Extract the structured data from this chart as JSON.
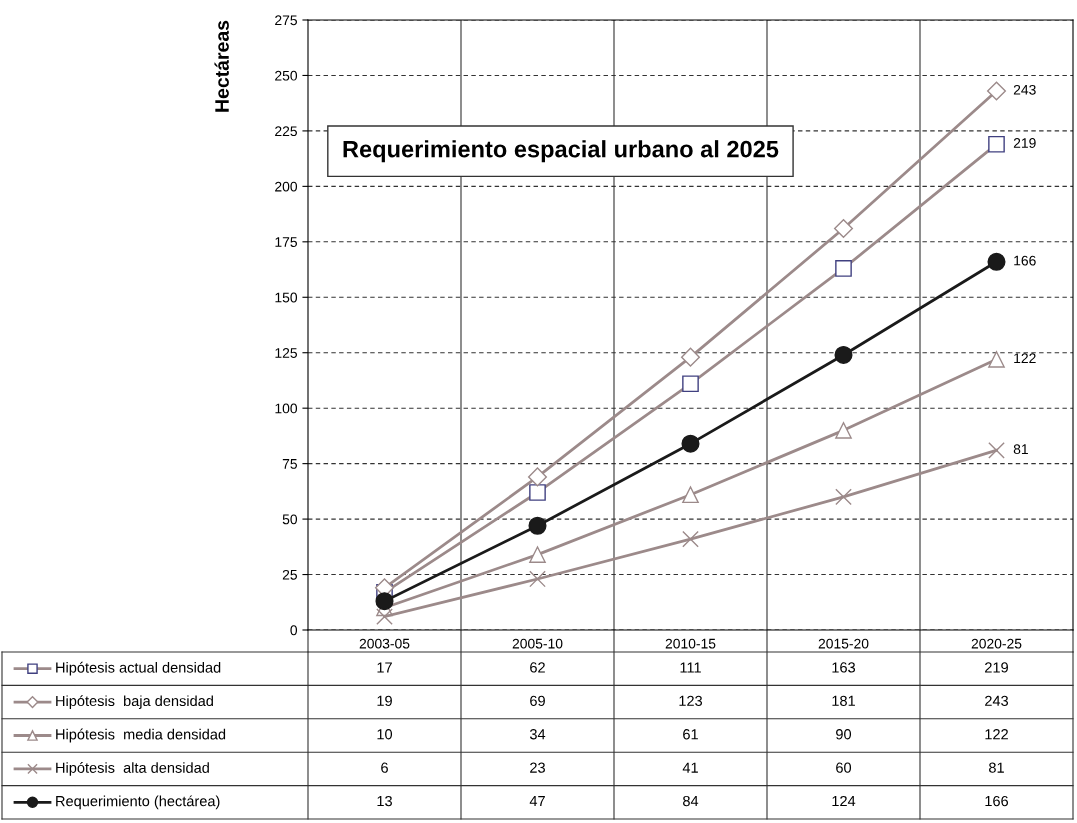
{
  "chart_data": {
    "type": "line",
    "title": "Requerimiento espacial urbano al 2025",
    "ylabel": "Hectáreas",
    "categories": [
      "2003-05",
      "2005-10",
      "2010-15",
      "2015-20",
      "2020-25"
    ],
    "ylim": [
      0,
      275
    ],
    "yticks": [
      0,
      25,
      50,
      75,
      100,
      125,
      150,
      175,
      200,
      225,
      250,
      275
    ],
    "grid": "y",
    "legend": "bottom",
    "data_labels": true,
    "annotations": [
      {
        "text": "243",
        "x": "2020-25",
        "y": 243
      },
      {
        "text": "219",
        "x": "2020-25",
        "y": 219
      },
      {
        "text": "166",
        "x": "2020-25",
        "y": 166
      },
      {
        "text": "122",
        "x": "2020-25",
        "y": 122
      },
      {
        "text": "81",
        "x": "2020-25",
        "y": 81
      }
    ],
    "series": [
      {
        "name": "Hipótesis actual densidad",
        "color": "#9c8a8a",
        "marker": "square",
        "values": [
          17,
          62,
          111,
          163,
          219
        ]
      },
      {
        "name": "Hipótesis  baja densidad",
        "color": "#9c8a8a",
        "marker": "diamond",
        "values": [
          19,
          69,
          123,
          181,
          243
        ]
      },
      {
        "name": "Hipótesis  media densidad",
        "color": "#9c8a8a",
        "marker": "triangle",
        "values": [
          10,
          34,
          61,
          90,
          122
        ]
      },
      {
        "name": "Hipótesis  alta densidad",
        "color": "#9c8a8a",
        "marker": "cross",
        "values": [
          6,
          23,
          41,
          60,
          81
        ]
      },
      {
        "name": "Requerimiento (hectárea)",
        "color": "#1a1a1a",
        "marker": "circle",
        "values": [
          13,
          47,
          84,
          124,
          166
        ]
      }
    ]
  }
}
